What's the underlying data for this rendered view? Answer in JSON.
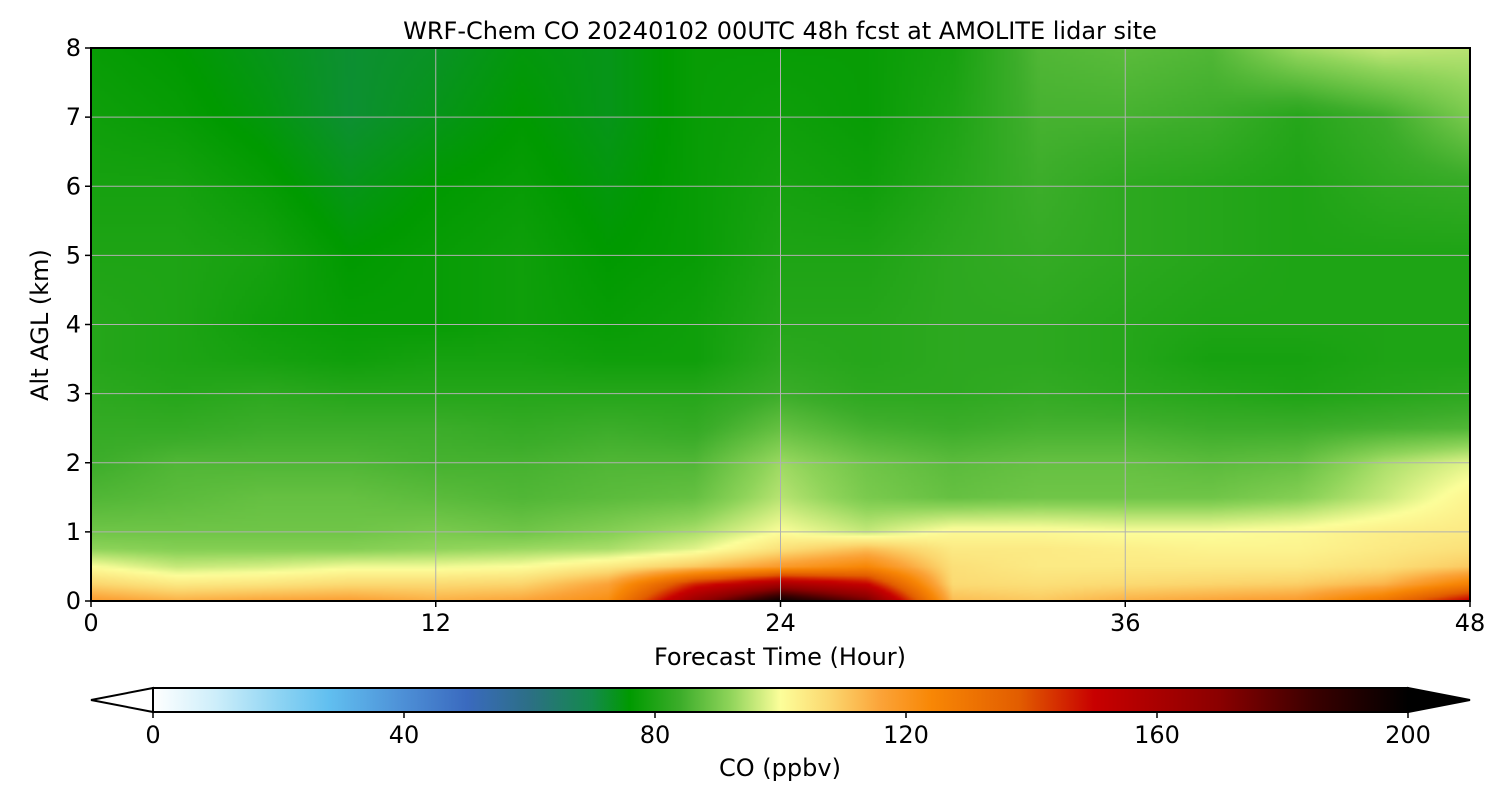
{
  "chart_data": {
    "type": "heatmap",
    "title": "WRF-Chem CO  20240102 00UTC 48h fcst at AMOLITE lidar site",
    "xlabel": "Forecast Time (Hour)",
    "ylabel": "Alt AGL (km)",
    "xlim": [
      0,
      48
    ],
    "ylim": [
      0,
      8
    ],
    "xticks": [
      0,
      12,
      24,
      36,
      48
    ],
    "yticks": [
      0,
      1,
      2,
      3,
      4,
      5,
      6,
      7,
      8
    ],
    "grid": true,
    "x_hours": [
      0,
      3,
      6,
      9,
      12,
      15,
      18,
      21,
      24,
      27,
      30,
      33,
      36,
      39,
      42,
      45,
      48
    ],
    "y_km": [
      0,
      0.25,
      0.5,
      0.75,
      1,
      1.5,
      2,
      2.5,
      3,
      3.5,
      4,
      5,
      6,
      7,
      8
    ],
    "z_ppbv": [
      [
        118,
        114,
        116,
        117,
        114,
        116,
        122,
        165,
        198,
        175,
        112,
        110,
        114,
        116,
        118,
        130,
        152
      ],
      [
        108,
        104,
        105,
        107,
        107,
        108,
        116,
        145,
        160,
        150,
        107,
        106,
        107,
        108,
        109,
        113,
        126
      ],
      [
        100,
        96,
        97,
        99,
        99,
        100,
        104,
        110,
        118,
        124,
        106,
        104,
        104,
        104,
        104,
        106,
        110
      ],
      [
        92,
        91,
        91,
        91,
        92,
        93,
        94,
        98,
        106,
        112,
        104,
        104,
        103,
        102,
        102,
        104,
        106
      ],
      [
        89,
        89,
        89,
        89,
        90,
        89,
        91,
        94,
        100,
        96,
        101,
        101,
        100,
        100,
        101,
        103,
        104
      ],
      [
        86,
        87,
        88,
        88,
        87,
        86,
        87,
        88,
        95,
        90,
        88,
        89,
        89,
        89,
        91,
        96,
        102
      ],
      [
        84,
        86,
        86,
        86,
        85,
        85,
        86,
        86,
        93,
        89,
        87,
        88,
        88,
        87,
        88,
        94,
        98
      ],
      [
        83,
        83,
        84,
        84,
        84,
        83,
        84,
        83,
        88,
        85,
        84,
        85,
        85,
        84,
        84,
        85,
        86
      ],
      [
        82,
        81,
        82,
        81,
        81,
        81,
        81,
        81,
        84,
        82,
        82,
        83,
        82,
        81,
        80,
        81,
        82
      ],
      [
        81,
        80,
        79,
        78,
        79,
        79,
        78,
        78,
        82,
        81,
        82,
        82,
        81,
        79,
        79,
        80,
        80
      ],
      [
        81,
        80,
        78,
        77,
        77,
        78,
        77,
        78,
        81,
        81,
        82,
        82,
        81,
        80,
        80,
        80,
        80
      ],
      [
        80,
        80,
        79,
        76,
        77,
        78,
        76,
        77,
        80,
        80,
        82,
        83,
        82,
        81,
        80,
        80,
        80
      ],
      [
        79,
        79,
        77,
        74,
        76,
        77,
        75,
        77,
        79,
        78,
        81,
        84,
        82,
        81,
        80,
        82,
        83
      ],
      [
        78,
        77,
        75,
        72,
        74,
        76,
        74,
        77,
        78,
        77,
        80,
        85,
        85,
        84,
        81,
        84,
        90
      ],
      [
        77,
        76,
        74,
        72,
        73,
        75,
        74,
        77,
        77,
        77,
        79,
        86,
        87,
        86,
        93,
        96,
        95
      ]
    ],
    "colorbar": {
      "label": "CO  (ppbv)",
      "min": 0,
      "max": 200,
      "ticks": [
        0,
        40,
        80,
        120,
        160,
        200
      ],
      "extend": "both",
      "stops": [
        {
          "v": 0,
          "c": "#ffffff"
        },
        {
          "v": 10,
          "c": "#cdeefa"
        },
        {
          "v": 20,
          "c": "#8ed4f3"
        },
        {
          "v": 28,
          "c": "#61bff0"
        },
        {
          "v": 40,
          "c": "#4d8fd6"
        },
        {
          "v": 50,
          "c": "#3a6abf"
        },
        {
          "v": 60,
          "c": "#2c6f85"
        },
        {
          "v": 70,
          "c": "#138a4b"
        },
        {
          "v": 76,
          "c": "#009a00"
        },
        {
          "v": 84,
          "c": "#3cad2a"
        },
        {
          "v": 92,
          "c": "#8fd45a"
        },
        {
          "v": 100,
          "c": "#fcfe9a"
        },
        {
          "v": 108,
          "c": "#fbd66e"
        },
        {
          "v": 116,
          "c": "#fba338"
        },
        {
          "v": 124,
          "c": "#f88705"
        },
        {
          "v": 138,
          "c": "#e25d00"
        },
        {
          "v": 150,
          "c": "#c80000"
        },
        {
          "v": 170,
          "c": "#8a0000"
        },
        {
          "v": 185,
          "c": "#3a0000"
        },
        {
          "v": 200,
          "c": "#000000"
        }
      ]
    }
  }
}
